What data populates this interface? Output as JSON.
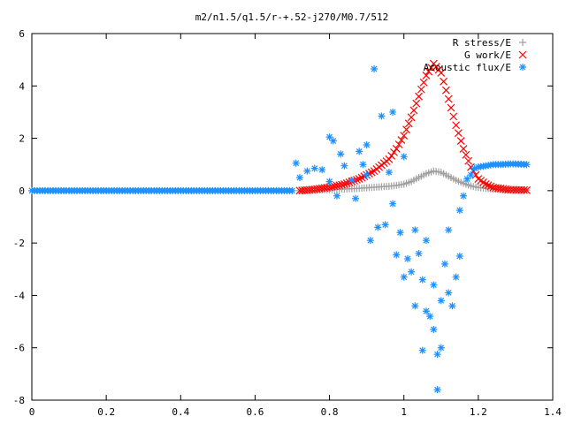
{
  "chart_data": {
    "type": "scatter",
    "title": "m2/n1.5/q1.5/r-+.52-j270/M0.7/512",
    "xlabel": "",
    "ylabel": "",
    "xlim": [
      0,
      1.4
    ],
    "ylim": [
      -8,
      6
    ],
    "x_ticks": [
      0,
      0.2,
      0.4,
      0.6,
      0.8,
      1,
      1.2,
      1.4
    ],
    "x_tick_labels": [
      "0",
      "0.2",
      "0.4",
      "0.6",
      "0.8",
      "1",
      "1.2",
      "1.4"
    ],
    "y_ticks": [
      -8,
      -6,
      -4,
      -2,
      0,
      2,
      4,
      6
    ],
    "y_tick_labels": [
      "-8",
      "-6",
      "-4",
      "-2",
      "0",
      "2",
      "4",
      "6"
    ],
    "grid": false,
    "legend_position": "top-right",
    "series": [
      {
        "name": "R stress/E",
        "marker": "plus",
        "color": "#a0a0a0",
        "points": [
          [
            0.72,
            0.0
          ],
          [
            0.76,
            0.02
          ],
          [
            0.8,
            0.04
          ],
          [
            0.84,
            0.06
          ],
          [
            0.88,
            0.09
          ],
          [
            0.92,
            0.13
          ],
          [
            0.96,
            0.17
          ],
          [
            0.98,
            0.2
          ],
          [
            1.0,
            0.25
          ],
          [
            1.02,
            0.35
          ],
          [
            1.04,
            0.5
          ],
          [
            1.06,
            0.65
          ],
          [
            1.08,
            0.75
          ],
          [
            1.1,
            0.7
          ],
          [
            1.12,
            0.55
          ],
          [
            1.14,
            0.4
          ],
          [
            1.16,
            0.28
          ],
          [
            1.18,
            0.18
          ],
          [
            1.2,
            0.12
          ],
          [
            1.24,
            0.06
          ],
          [
            1.28,
            0.03
          ],
          [
            1.33,
            0.02
          ]
        ]
      },
      {
        "name": "G work/E",
        "marker": "cross",
        "color": "#ff0000",
        "points": [
          [
            0.72,
            0.0
          ],
          [
            0.76,
            0.05
          ],
          [
            0.8,
            0.13
          ],
          [
            0.84,
            0.25
          ],
          [
            0.88,
            0.45
          ],
          [
            0.92,
            0.75
          ],
          [
            0.96,
            1.2
          ],
          [
            0.98,
            1.6
          ],
          [
            1.0,
            2.1
          ],
          [
            1.02,
            2.8
          ],
          [
            1.04,
            3.6
          ],
          [
            1.06,
            4.4
          ],
          [
            1.08,
            4.85
          ],
          [
            1.1,
            4.5
          ],
          [
            1.12,
            3.5
          ],
          [
            1.14,
            2.5
          ],
          [
            1.16,
            1.6
          ],
          [
            1.18,
            0.9
          ],
          [
            1.2,
            0.45
          ],
          [
            1.22,
            0.25
          ],
          [
            1.24,
            0.12
          ],
          [
            1.28,
            0.04
          ],
          [
            1.33,
            0.02
          ]
        ]
      },
      {
        "name": "Acoustic flux/E",
        "marker": "star",
        "color": "#1e90ff",
        "points": [
          [
            0.0,
            0.0
          ],
          [
            0.1,
            0.0
          ],
          [
            0.2,
            0.0
          ],
          [
            0.3,
            0.0
          ],
          [
            0.4,
            0.0
          ],
          [
            0.5,
            0.0
          ],
          [
            0.6,
            0.0
          ],
          [
            0.7,
            0.0
          ],
          [
            0.71,
            1.05
          ],
          [
            0.72,
            0.5
          ],
          [
            0.74,
            0.75
          ],
          [
            0.76,
            0.85
          ],
          [
            0.78,
            0.8
          ],
          [
            0.8,
            2.05
          ],
          [
            0.81,
            1.9
          ],
          [
            0.8,
            0.35
          ],
          [
            0.82,
            -0.2
          ],
          [
            0.83,
            1.4
          ],
          [
            0.84,
            0.95
          ],
          [
            0.86,
            0.4
          ],
          [
            0.87,
            -0.3
          ],
          [
            0.88,
            1.5
          ],
          [
            0.89,
            1.0
          ],
          [
            0.9,
            1.75
          ],
          [
            0.9,
            0.6
          ],
          [
            0.91,
            -1.9
          ],
          [
            0.92,
            4.65
          ],
          [
            0.93,
            -1.4
          ],
          [
            0.94,
            2.85
          ],
          [
            0.95,
            -1.3
          ],
          [
            0.96,
            0.7
          ],
          [
            0.97,
            3.0
          ],
          [
            0.97,
            -0.5
          ],
          [
            0.98,
            -2.45
          ],
          [
            0.99,
            -1.6
          ],
          [
            1.0,
            -3.3
          ],
          [
            1.0,
            1.3
          ],
          [
            1.01,
            -2.6
          ],
          [
            1.02,
            -3.1
          ],
          [
            1.03,
            -1.5
          ],
          [
            1.03,
            -4.4
          ],
          [
            1.04,
            -2.4
          ],
          [
            1.05,
            -3.4
          ],
          [
            1.05,
            -6.1
          ],
          [
            1.06,
            -4.6
          ],
          [
            1.06,
            -1.9
          ],
          [
            1.07,
            -4.8
          ],
          [
            1.08,
            -5.3
          ],
          [
            1.08,
            -3.6
          ],
          [
            1.09,
            -6.25
          ],
          [
            1.09,
            -7.6
          ],
          [
            1.1,
            -6.0
          ],
          [
            1.1,
            -4.2
          ],
          [
            1.11,
            -2.8
          ],
          [
            1.12,
            -3.9
          ],
          [
            1.12,
            -1.5
          ],
          [
            1.13,
            -4.4
          ],
          [
            1.14,
            -3.3
          ],
          [
            1.15,
            -2.5
          ],
          [
            1.15,
            -0.75
          ],
          [
            1.16,
            -0.2
          ],
          [
            1.17,
            0.45
          ],
          [
            1.18,
            0.6
          ],
          [
            1.19,
            0.85
          ],
          [
            1.2,
            0.9
          ],
          [
            1.22,
            0.95
          ],
          [
            1.24,
            1.0
          ],
          [
            1.26,
            1.0
          ],
          [
            1.28,
            1.02
          ],
          [
            1.3,
            1.02
          ],
          [
            1.33,
            1.0
          ]
        ]
      }
    ]
  }
}
